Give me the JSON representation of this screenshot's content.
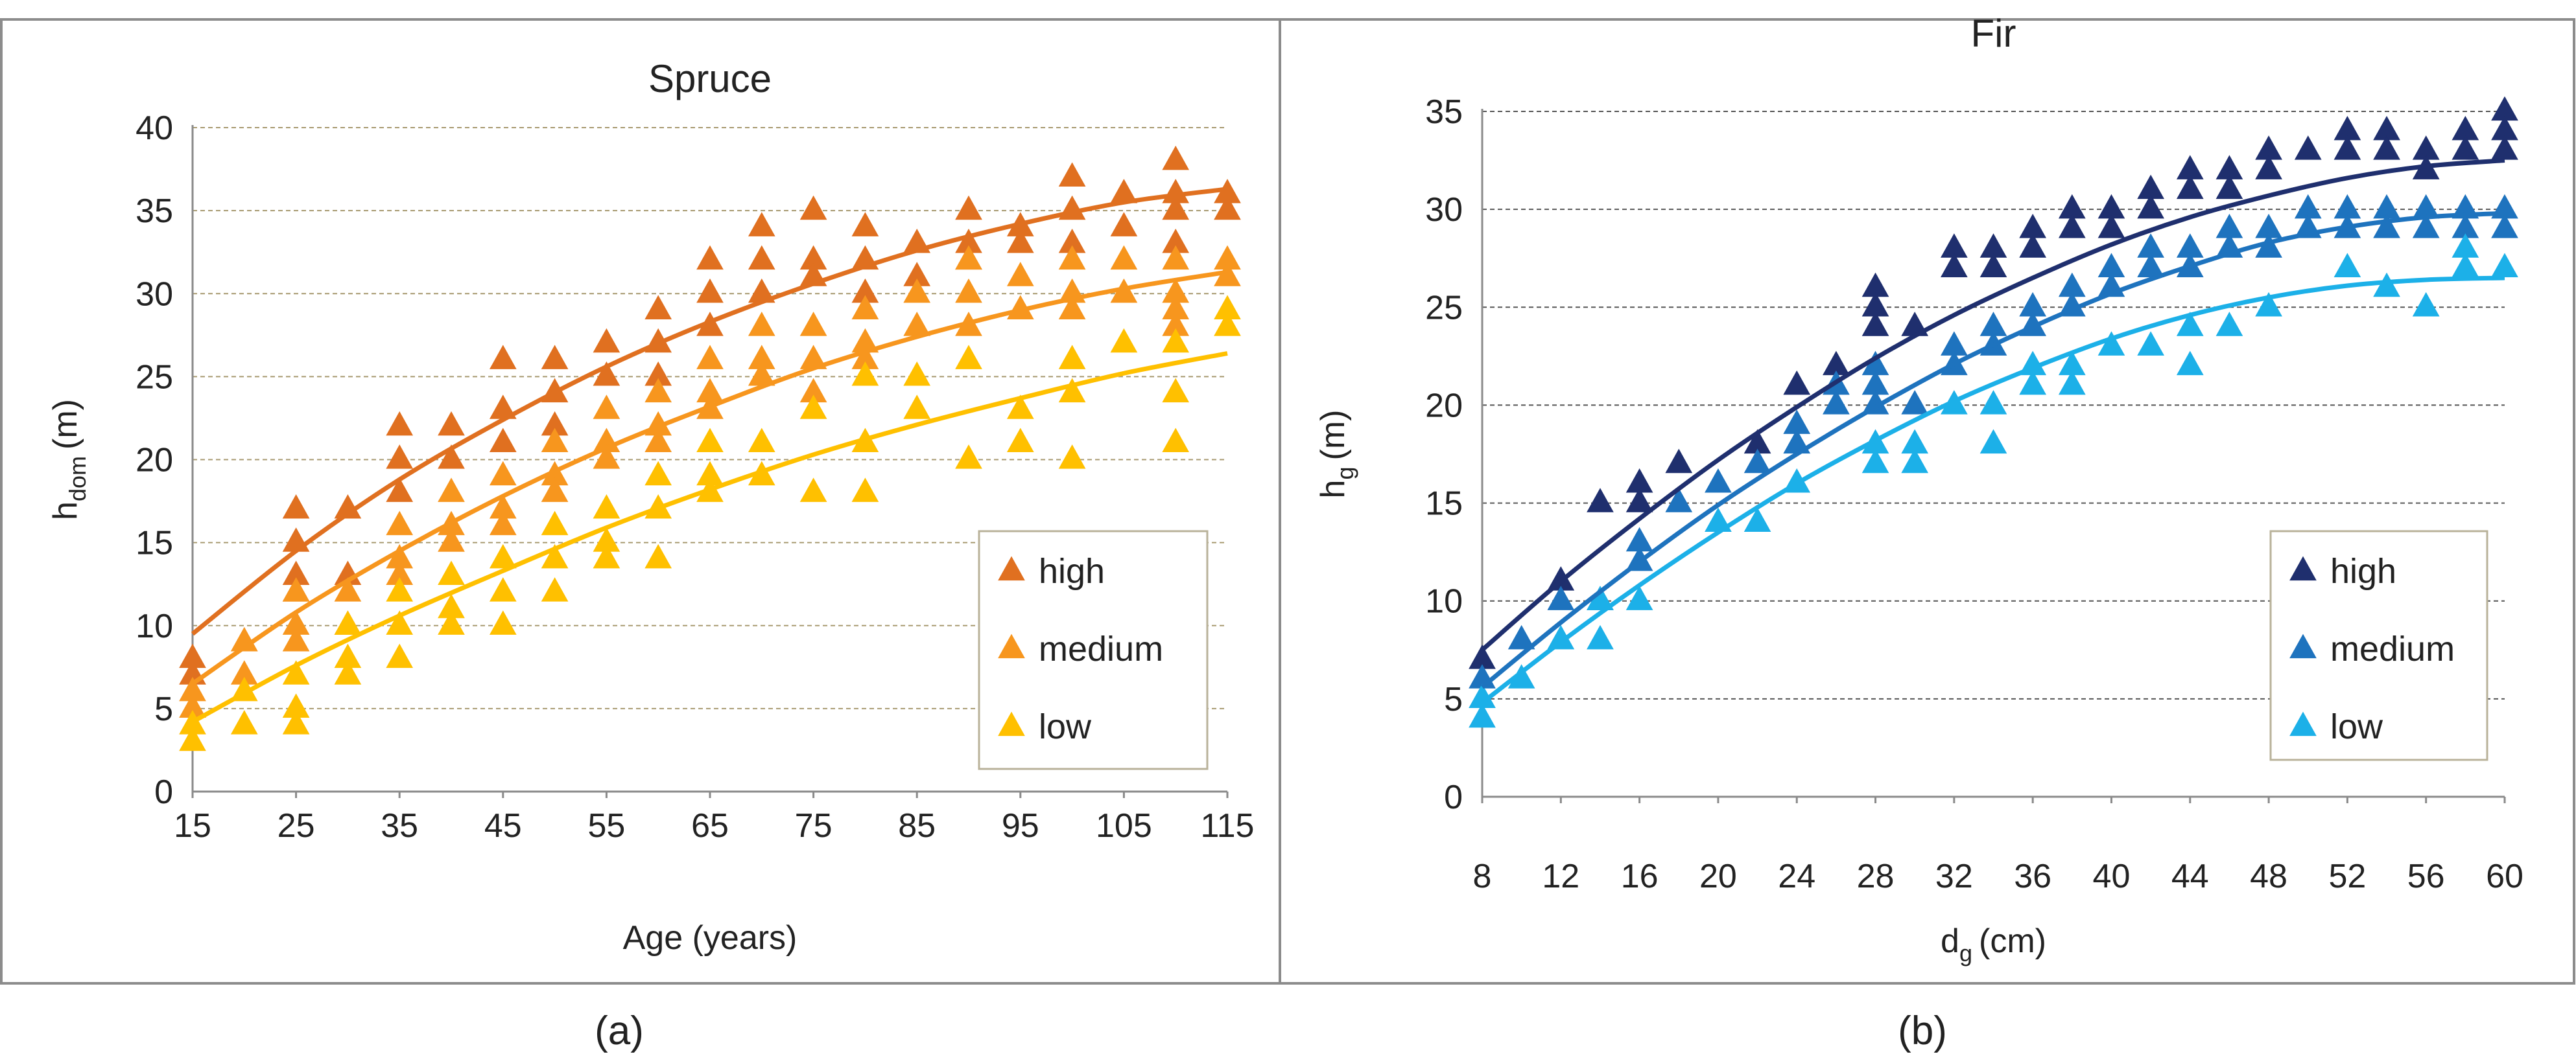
{
  "chart_data": [
    {
      "type": "scatter",
      "panel_label": "(a)",
      "title": "Spruce",
      "xlabel": "Age (years)",
      "ylabel": "h",
      "ylabel_sub": "dom",
      "ylabel_unit": "(m)",
      "xlim": [
        15,
        115
      ],
      "ylim": [
        0,
        40
      ],
      "xticks": [
        15,
        25,
        35,
        45,
        55,
        65,
        75,
        85,
        95,
        105,
        115
      ],
      "yticks": [
        0,
        5,
        10,
        15,
        20,
        25,
        30,
        35,
        40
      ],
      "grid": "horizontal dashed",
      "legend": [
        "high",
        "medium",
        "low"
      ],
      "legend_position": "bottom-right",
      "series": [
        {
          "name": "high",
          "color": "#E07020",
          "marker": "triangle",
          "curve": [
            [
              15,
              9.5
            ],
            [
              25,
              14.5
            ],
            [
              35,
              18.8
            ],
            [
              45,
              22.4
            ],
            [
              55,
              25.6
            ],
            [
              65,
              28.3
            ],
            [
              75,
              30.6
            ],
            [
              85,
              32.6
            ],
            [
              95,
              34.2
            ],
            [
              105,
              35.5
            ],
            [
              115,
              36.3
            ]
          ],
          "x": [
            15,
            15,
            20,
            25,
            25,
            25,
            25,
            30,
            30,
            35,
            35,
            35,
            40,
            40,
            45,
            45,
            45,
            50,
            50,
            50,
            55,
            55,
            60,
            60,
            60,
            65,
            65,
            65,
            70,
            70,
            70,
            75,
            75,
            75,
            80,
            80,
            80,
            85,
            85,
            90,
            90,
            90,
            95,
            95,
            100,
            100,
            100,
            105,
            105,
            110,
            110,
            110,
            110,
            115,
            115
          ],
          "y": [
            8,
            7,
            9,
            17,
            15,
            13,
            12,
            17,
            13,
            22,
            20,
            18,
            22,
            20,
            26,
            23,
            21,
            26,
            24,
            22,
            27,
            25,
            29,
            27,
            25,
            32,
            30,
            28,
            34,
            32,
            30,
            35,
            32,
            31,
            34,
            32,
            30,
            33,
            31,
            35,
            33,
            32,
            34,
            33,
            37,
            35,
            33,
            36,
            34,
            38,
            36,
            35,
            33,
            36,
            35
          ]
        },
        {
          "name": "medium",
          "color": "#F7961E",
          "marker": "triangle",
          "curve": [
            [
              15,
              6.5
            ],
            [
              25,
              10.8
            ],
            [
              35,
              14.5
            ],
            [
              45,
              17.8
            ],
            [
              55,
              20.7
            ],
            [
              65,
              23.2
            ],
            [
              75,
              25.5
            ],
            [
              85,
              27.4
            ],
            [
              95,
              29.0
            ],
            [
              105,
              30.3
            ],
            [
              115,
              31.3
            ]
          ],
          "x": [
            15,
            15,
            20,
            20,
            25,
            25,
            25,
            30,
            30,
            35,
            35,
            35,
            40,
            40,
            40,
            45,
            45,
            45,
            50,
            50,
            50,
            55,
            55,
            55,
            60,
            60,
            60,
            65,
            65,
            65,
            70,
            70,
            70,
            75,
            75,
            75,
            80,
            80,
            80,
            85,
            85,
            90,
            90,
            90,
            95,
            95,
            100,
            100,
            100,
            105,
            105,
            110,
            110,
            110,
            110,
            115,
            115
          ],
          "y": [
            6,
            5,
            9,
            7,
            12,
            10,
            9,
            12,
            10,
            16,
            14,
            13,
            18,
            16,
            15,
            19,
            17,
            16,
            21,
            19,
            18,
            23,
            21,
            20,
            24,
            22,
            21,
            26,
            24,
            23,
            28,
            26,
            25,
            28,
            26,
            24,
            29,
            27,
            26,
            30,
            28,
            32,
            30,
            28,
            31,
            29,
            32,
            30,
            29,
            32,
            30,
            32,
            30,
            29,
            28,
            32,
            31
          ]
        },
        {
          "name": "low",
          "color": "#FFC000",
          "marker": "triangle",
          "curve": [
            [
              15,
              4.2
            ],
            [
              25,
              7.6
            ],
            [
              35,
              10.6
            ],
            [
              45,
              13.3
            ],
            [
              55,
              15.9
            ],
            [
              65,
              18.2
            ],
            [
              75,
              20.3
            ],
            [
              85,
              22.1
            ],
            [
              95,
              23.7
            ],
            [
              105,
              25.2
            ],
            [
              115,
              26.4
            ]
          ],
          "x": [
            15,
            15,
            20,
            20,
            25,
            25,
            25,
            30,
            30,
            30,
            35,
            35,
            35,
            40,
            40,
            40,
            45,
            45,
            45,
            50,
            50,
            50,
            55,
            55,
            55,
            60,
            60,
            60,
            65,
            65,
            65,
            70,
            70,
            75,
            75,
            80,
            80,
            80,
            85,
            85,
            90,
            90,
            95,
            95,
            100,
            100,
            100,
            105,
            110,
            110,
            110,
            115,
            115
          ],
          "y": [
            4,
            3,
            6,
            4,
            7,
            5,
            4,
            10,
            8,
            7,
            12,
            10,
            8,
            13,
            11,
            10,
            14,
            12,
            10,
            16,
            14,
            12,
            17,
            15,
            14,
            19,
            17,
            14,
            21,
            19,
            18,
            21,
            19,
            23,
            18,
            25,
            21,
            18,
            25,
            23,
            26,
            20,
            23,
            21,
            26,
            24,
            20,
            27,
            27,
            24,
            21,
            29,
            28
          ]
        }
      ]
    },
    {
      "type": "scatter",
      "panel_label": "(b)",
      "title": "Fir",
      "xlabel": "d",
      "xlabel_sub": "g",
      "xlabel_unit": "(cm)",
      "ylabel": "h",
      "ylabel_sub": "g",
      "ylabel_unit": "(m)",
      "xlim": [
        8,
        60
      ],
      "ylim": [
        0,
        35
      ],
      "xticks": [
        8,
        12,
        16,
        20,
        24,
        28,
        32,
        36,
        40,
        44,
        48,
        52,
        56,
        60
      ],
      "yticks": [
        0,
        5,
        10,
        15,
        20,
        25,
        30,
        35
      ],
      "grid": "horizontal dashed",
      "legend": [
        "high",
        "medium",
        "low"
      ],
      "legend_position": "bottom-right",
      "series": [
        {
          "name": "high",
          "color": "#1F2F6E",
          "marker": "triangle",
          "curve": [
            [
              8,
              7.5
            ],
            [
              12,
              11.0
            ],
            [
              16,
              14.2
            ],
            [
              20,
              17.2
            ],
            [
              24,
              19.9
            ],
            [
              28,
              22.4
            ],
            [
              32,
              24.6
            ],
            [
              36,
              26.5
            ],
            [
              40,
              28.2
            ],
            [
              44,
              29.6
            ],
            [
              48,
              30.7
            ],
            [
              52,
              31.6
            ],
            [
              56,
              32.2
            ],
            [
              60,
              32.5
            ]
          ],
          "x": [
            8,
            12,
            14,
            16,
            16,
            18,
            22,
            24,
            26,
            28,
            28,
            28,
            30,
            32,
            32,
            34,
            34,
            36,
            36,
            38,
            38,
            40,
            40,
            42,
            42,
            44,
            44,
            46,
            46,
            48,
            48,
            50,
            52,
            52,
            54,
            54,
            56,
            56,
            58,
            58,
            60,
            60,
            60
          ],
          "y": [
            7,
            11,
            15,
            16,
            15,
            17,
            18,
            21,
            22,
            26,
            25,
            24,
            24,
            28,
            27,
            28,
            27,
            29,
            28,
            30,
            29,
            30,
            29,
            31,
            30,
            32,
            31,
            32,
            31,
            33,
            32,
            33,
            34,
            33,
            34,
            33,
            33,
            32,
            34,
            33,
            35,
            34,
            33
          ]
        },
        {
          "name": "medium",
          "color": "#1E73BE",
          "marker": "triangle",
          "curve": [
            [
              8,
              5.6
            ],
            [
              12,
              8.9
            ],
            [
              16,
              12.0
            ],
            [
              20,
              14.9
            ],
            [
              24,
              17.5
            ],
            [
              28,
              19.9
            ],
            [
              32,
              22.1
            ],
            [
              36,
              24.0
            ],
            [
              40,
              25.7
            ],
            [
              44,
              27.1
            ],
            [
              48,
              28.3
            ],
            [
              52,
              29.1
            ],
            [
              56,
              29.6
            ],
            [
              60,
              29.8
            ]
          ],
          "x": [
            8,
            10,
            12,
            14,
            16,
            16,
            18,
            20,
            22,
            24,
            24,
            26,
            26,
            28,
            28,
            28,
            30,
            32,
            32,
            34,
            34,
            36,
            36,
            38,
            38,
            40,
            40,
            42,
            42,
            44,
            44,
            46,
            46,
            48,
            48,
            50,
            50,
            52,
            52,
            54,
            54,
            56,
            56,
            58,
            58,
            60,
            60
          ],
          "y": [
            6,
            8,
            10,
            10,
            13,
            12,
            15,
            16,
            17,
            19,
            18,
            21,
            20,
            22,
            21,
            20,
            20,
            23,
            22,
            24,
            23,
            25,
            24,
            26,
            25,
            27,
            26,
            28,
            27,
            28,
            27,
            29,
            28,
            29,
            28,
            30,
            29,
            30,
            29,
            30,
            29,
            29,
            30,
            30,
            29,
            30,
            29
          ]
        },
        {
          "name": "low",
          "color": "#1CB0E8",
          "marker": "triangle",
          "curve": [
            [
              8,
              4.8
            ],
            [
              12,
              7.9
            ],
            [
              16,
              10.8
            ],
            [
              20,
              13.5
            ],
            [
              24,
              16.0
            ],
            [
              28,
              18.2
            ],
            [
              32,
              20.2
            ],
            [
              36,
              21.9
            ],
            [
              40,
              23.4
            ],
            [
              44,
              24.6
            ],
            [
              48,
              25.5
            ],
            [
              52,
              26.1
            ],
            [
              56,
              26.4
            ],
            [
              60,
              26.5
            ]
          ],
          "x": [
            8,
            8,
            10,
            12,
            14,
            14,
            16,
            20,
            22,
            24,
            28,
            28,
            30,
            30,
            32,
            34,
            34,
            36,
            36,
            38,
            38,
            40,
            42,
            44,
            44,
            46,
            48,
            52,
            54,
            56,
            58,
            58,
            60
          ],
          "y": [
            5,
            4,
            6,
            8,
            10,
            8,
            10,
            14,
            14,
            16,
            18,
            17,
            18,
            17,
            20,
            20,
            18,
            22,
            21,
            22,
            21,
            23,
            23,
            24,
            22,
            24,
            25,
            27,
            26,
            25,
            28,
            27,
            27
          ]
        }
      ]
    }
  ]
}
